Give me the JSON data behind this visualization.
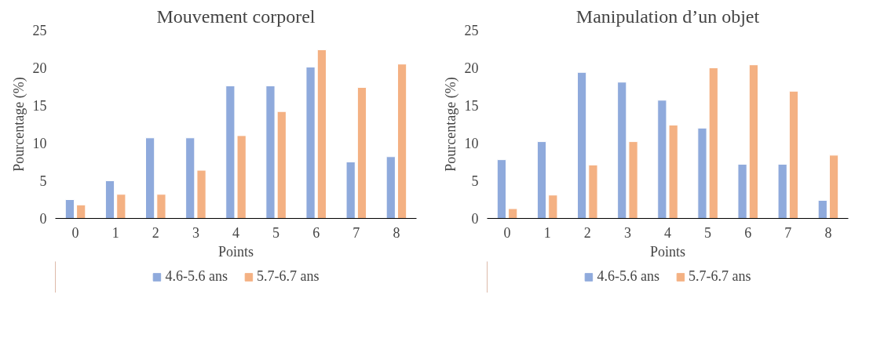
{
  "chart_data": [
    {
      "type": "bar",
      "title": "Mouvement corporel",
      "xlabel": "Points",
      "ylabel": "Pourcentage (%)",
      "categories": [
        "0",
        "1",
        "2",
        "3",
        "4",
        "5",
        "6",
        "7",
        "8"
      ],
      "series": [
        {
          "name": "4.6-5.6 ans",
          "color": "#8faadc",
          "values": [
            2.5,
            5.0,
            10.7,
            10.7,
            17.6,
            17.6,
            20.1,
            7.5,
            8.2
          ]
        },
        {
          "name": "5.7-6.7 ans",
          "color": "#f4b183",
          "values": [
            1.8,
            3.2,
            3.2,
            6.4,
            11.0,
            14.2,
            22.4,
            17.4,
            20.5
          ]
        }
      ],
      "ylim": [
        0,
        25
      ],
      "yticks": [
        0,
        5,
        10,
        15,
        20,
        25
      ],
      "grid": false,
      "legend": "bottom"
    },
    {
      "type": "bar",
      "title": "Manipulation d’un objet",
      "xlabel": "Points",
      "ylabel": "Pourcentage (%)",
      "categories": [
        "0",
        "1",
        "2",
        "3",
        "4",
        "5",
        "6",
        "7",
        "8"
      ],
      "series": [
        {
          "name": "4.6-5.6 ans",
          "color": "#8faadc",
          "values": [
            7.8,
            10.2,
            19.4,
            18.1,
            15.7,
            12.0,
            7.2,
            7.2,
            2.4
          ]
        },
        {
          "name": "5.7-6.7 ans",
          "color": "#f4b183",
          "values": [
            1.3,
            3.1,
            7.1,
            10.2,
            12.4,
            20.0,
            20.4,
            16.9,
            8.4
          ]
        }
      ],
      "ylim": [
        0,
        25
      ],
      "yticks": [
        0,
        5,
        10,
        15,
        20,
        25
      ],
      "grid": false,
      "legend": "bottom"
    }
  ]
}
